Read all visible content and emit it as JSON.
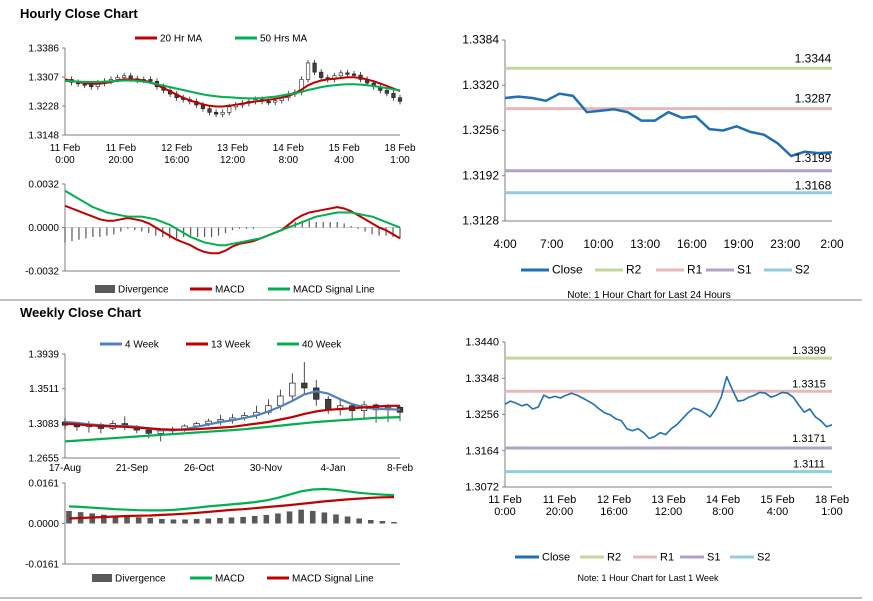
{
  "hourly_section": {
    "title": "Hourly Close Chart"
  },
  "weekly_section": {
    "title": "Weekly Close Chart"
  },
  "colors": {
    "close": "#1f6fb4",
    "r2": "#c3d69b",
    "r1": "#e6b9b8",
    "s1": "#b3a2c7",
    "s2": "#93cddd",
    "ma_red": "#c00000",
    "ma_green": "#00b050",
    "ma_blue": "#4f81bd",
    "divergence": "#595959",
    "up_candle": "#ffffff",
    "down_candle": "#404040",
    "axis": "#7f7f7f"
  },
  "chart_data": [
    {
      "id": "hourly_price",
      "type": "line",
      "title": "Hourly Close Chart",
      "ylim": [
        1.3148,
        1.3386
      ],
      "yticks": [
        "1.3386",
        "1.3307",
        "1.3228",
        "1.3148"
      ],
      "xticks": [
        "11 Feb\n0:00",
        "11 Feb\n20:00",
        "12 Feb\n16:00",
        "13 Feb\n12:00",
        "14 Feb\n8:00",
        "15 Feb\n4:00",
        "18 Feb\n1:00"
      ],
      "legend": [
        "20 Hr MA",
        "50 Hrs MA"
      ],
      "close": [
        1.33,
        1.3292,
        1.3288,
        1.3285,
        1.328,
        1.329,
        1.3295,
        1.33,
        1.3305,
        1.331,
        1.3302,
        1.3298,
        1.33,
        1.3295,
        1.328,
        1.327,
        1.326,
        1.325,
        1.3245,
        1.324,
        1.323,
        1.322,
        1.321,
        1.3205,
        1.321,
        1.3225,
        1.323,
        1.3235,
        1.324,
        1.3245,
        1.324,
        1.3238,
        1.3242,
        1.325,
        1.326,
        1.3265,
        1.33,
        1.3345,
        1.332,
        1.3305,
        1.33,
        1.331,
        1.3318,
        1.3315,
        1.3312,
        1.33,
        1.329,
        1.328,
        1.327,
        1.3262,
        1.325,
        1.324
      ],
      "series": [
        {
          "name": "20 Hr MA",
          "values": [
            1.33,
            1.3296,
            1.3293,
            1.329,
            1.3288,
            1.3288,
            1.329,
            1.3293,
            1.3297,
            1.33,
            1.33,
            1.3299,
            1.3297,
            1.3292,
            1.3285,
            1.3276,
            1.3268,
            1.3258,
            1.325,
            1.3243,
            1.3237,
            1.3232,
            1.3228,
            1.3226,
            1.3226,
            1.3228,
            1.3231,
            1.3234,
            1.3237,
            1.324,
            1.3242,
            1.3244,
            1.3247,
            1.325,
            1.3255,
            1.3262,
            1.3272,
            1.3284,
            1.3292,
            1.3297,
            1.33,
            1.3302,
            1.3304,
            1.3306,
            1.3306,
            1.3304,
            1.33,
            1.3295,
            1.3289,
            1.3282,
            1.3275,
            1.3268
          ]
        },
        {
          "name": "50 Hrs MA",
          "values": [
            1.3296,
            1.3295,
            1.3294,
            1.3293,
            1.3293,
            1.3293,
            1.3294,
            1.3295,
            1.3296,
            1.3297,
            1.3297,
            1.3296,
            1.3294,
            1.3291,
            1.3287,
            1.3283,
            1.3279,
            1.3275,
            1.3271,
            1.3267,
            1.3263,
            1.3259,
            1.3256,
            1.3254,
            1.3252,
            1.3251,
            1.325,
            1.3249,
            1.3248,
            1.3248,
            1.3249,
            1.3251,
            1.3253,
            1.3256,
            1.3259,
            1.3262,
            1.3266,
            1.3271,
            1.3275,
            1.3279,
            1.3282,
            1.3284,
            1.3286,
            1.3287,
            1.3287,
            1.3286,
            1.3284,
            1.3282,
            1.3279,
            1.3276,
            1.3273,
            1.327
          ]
        }
      ]
    },
    {
      "id": "hourly_macd",
      "type": "line",
      "ylim": [
        -0.0032,
        0.0032
      ],
      "yticks": [
        "0.0032",
        "0.0000",
        "-0.0032"
      ],
      "legend": [
        "Divergence",
        "MACD",
        "MACD Signal Line"
      ],
      "series": [
        {
          "name": "MACD",
          "values": [
            0.0016,
            0.0014,
            0.0012,
            0.001,
            0.0008,
            0.0006,
            0.0005,
            0.0005,
            0.0006,
            0.0007,
            0.0006,
            0.0005,
            0.0003,
            0.0,
            -0.0003,
            -0.0006,
            -0.0009,
            -0.0011,
            -0.0013,
            -0.0016,
            -0.0018,
            -0.0019,
            -0.0019,
            -0.0017,
            -0.0014,
            -0.0012,
            -0.0011,
            -0.001,
            -0.0008,
            -0.0006,
            -0.0004,
            -0.0002,
            0.0002,
            0.0006,
            0.0009,
            0.0011,
            0.0012,
            0.0013,
            0.0014,
            0.0015,
            0.0014,
            0.0012,
            0.0009,
            0.0006,
            0.0003,
            0.0,
            -0.0002,
            -0.0005,
            -0.0008
          ]
        },
        {
          "name": "MACD Signal Line",
          "values": [
            0.0027,
            0.0024,
            0.0021,
            0.0018,
            0.0015,
            0.0013,
            0.0011,
            0.001,
            0.0009,
            0.0008,
            0.0008,
            0.0008,
            0.0007,
            0.0006,
            0.0004,
            0.0002,
            -0.0001,
            -0.0004,
            -0.0007,
            -0.0009,
            -0.0011,
            -0.0012,
            -0.0013,
            -0.0013,
            -0.0012,
            -0.0011,
            -0.001,
            -0.0009,
            -0.0008,
            -0.0006,
            -0.0004,
            -0.0002,
            0.0,
            0.0002,
            0.0004,
            0.0006,
            0.0008,
            0.0009,
            0.001,
            0.0011,
            0.0011,
            0.0011,
            0.001,
            0.0009,
            0.0008,
            0.0006,
            0.0004,
            0.0002,
            0.0
          ]
        }
      ]
    },
    {
      "id": "hourly_levels",
      "type": "line",
      "ylim": [
        1.3128,
        1.3384
      ],
      "yticks": [
        "1.3384",
        "1.3320",
        "1.3256",
        "1.3192",
        "1.3128"
      ],
      "xticks": [
        "4:00",
        "7:00",
        "10:00",
        "13:00",
        "16:00",
        "19:00",
        "23:00",
        "2:00"
      ],
      "levels": {
        "R2": 1.3344,
        "R1": 1.3287,
        "S1": 1.3199,
        "S2": 1.3168
      },
      "level_labels": {
        "R2": "1.3344",
        "R1": "1.3287",
        "S1": "1.3199",
        "S2": "1.3168"
      },
      "close": [
        1.3302,
        1.3304,
        1.3302,
        1.3298,
        1.3308,
        1.3305,
        1.3282,
        1.3284,
        1.3286,
        1.3282,
        1.327,
        1.327,
        1.3282,
        1.3274,
        1.3276,
        1.3258,
        1.3256,
        1.3262,
        1.3254,
        1.325,
        1.3238,
        1.322,
        1.3226,
        1.3224,
        1.3225
      ],
      "legend": [
        "Close",
        "R2",
        "R1",
        "S1",
        "S2"
      ],
      "note": "Note: 1 Hour Chart for Last 24 Hours"
    },
    {
      "id": "weekly_price",
      "type": "line",
      "title": "Weekly Close Chart",
      "ylim": [
        1.2655,
        1.3939
      ],
      "yticks": [
        "1.3939",
        "1.3511",
        "1.3083",
        "1.2655"
      ],
      "xticks": [
        "17-Aug",
        "21-Sep",
        "26-Oct",
        "30-Nov",
        "4-Jan",
        "8-Feb"
      ],
      "legend": [
        "4 Week",
        "13 Week",
        "40 Week"
      ],
      "candles": [
        {
          "o": 1.31,
          "c": 1.306,
          "h": 1.315,
          "l": 1.301
        },
        {
          "o": 1.306,
          "c": 1.304,
          "h": 1.31,
          "l": 1.299
        },
        {
          "o": 1.304,
          "c": 1.307,
          "h": 1.311,
          "l": 1.297
        },
        {
          "o": 1.307,
          "c": 1.302,
          "h": 1.309,
          "l": 1.296
        },
        {
          "o": 1.302,
          "c": 1.308,
          "h": 1.312,
          "l": 1.3
        },
        {
          "o": 1.308,
          "c": 1.304,
          "h": 1.317,
          "l": 1.3
        },
        {
          "o": 1.304,
          "c": 1.3,
          "h": 1.306,
          "l": 1.296
        },
        {
          "o": 1.3,
          "c": 1.296,
          "h": 1.303,
          "l": 1.29
        },
        {
          "o": 1.296,
          "c": 1.299,
          "h": 1.301,
          "l": 1.286
        },
        {
          "o": 1.299,
          "c": 1.301,
          "h": 1.304,
          "l": 1.295
        },
        {
          "o": 1.301,
          "c": 1.305,
          "h": 1.307,
          "l": 1.298
        },
        {
          "o": 1.305,
          "c": 1.308,
          "h": 1.31,
          "l": 1.301
        },
        {
          "o": 1.308,
          "c": 1.311,
          "h": 1.314,
          "l": 1.305
        },
        {
          "o": 1.311,
          "c": 1.313,
          "h": 1.319,
          "l": 1.306
        },
        {
          "o": 1.313,
          "c": 1.315,
          "h": 1.32,
          "l": 1.308
        },
        {
          "o": 1.315,
          "c": 1.318,
          "h": 1.322,
          "l": 1.312
        },
        {
          "o": 1.318,
          "c": 1.322,
          "h": 1.33,
          "l": 1.314
        },
        {
          "o": 1.322,
          "c": 1.33,
          "h": 1.338,
          "l": 1.319
        },
        {
          "o": 1.33,
          "c": 1.342,
          "h": 1.35,
          "l": 1.325
        },
        {
          "o": 1.342,
          "c": 1.358,
          "h": 1.37,
          "l": 1.338
        },
        {
          "o": 1.358,
          "c": 1.352,
          "h": 1.384,
          "l": 1.344
        },
        {
          "o": 1.352,
          "c": 1.338,
          "h": 1.362,
          "l": 1.33
        },
        {
          "o": 1.338,
          "c": 1.325,
          "h": 1.342,
          "l": 1.32
        },
        {
          "o": 1.325,
          "c": 1.33,
          "h": 1.338,
          "l": 1.318
        },
        {
          "o": 1.33,
          "c": 1.324,
          "h": 1.333,
          "l": 1.314
        },
        {
          "o": 1.324,
          "c": 1.331,
          "h": 1.336,
          "l": 1.315
        },
        {
          "o": 1.331,
          "c": 1.325,
          "h": 1.333,
          "l": 1.309
        },
        {
          "o": 1.325,
          "c": 1.328,
          "h": 1.332,
          "l": 1.31
        },
        {
          "o": 1.328,
          "c": 1.322,
          "h": 1.33,
          "l": 1.311
        }
      ],
      "series": [
        {
          "name": "4 Week",
          "values": [
            1.31,
            1.309,
            1.307,
            1.306,
            1.305,
            1.305,
            1.304,
            1.302,
            1.3,
            1.3,
            1.301,
            1.304,
            1.307,
            1.31,
            1.312,
            1.315,
            1.318,
            1.323,
            1.329,
            1.336,
            1.344,
            1.348,
            1.345,
            1.338,
            1.332,
            1.328,
            1.326,
            1.326,
            1.325
          ]
        },
        {
          "name": "13 Week",
          "values": [
            1.308,
            1.307,
            1.306,
            1.305,
            1.3045,
            1.304,
            1.303,
            1.302,
            1.301,
            1.3005,
            1.3005,
            1.301,
            1.302,
            1.303,
            1.304,
            1.306,
            1.308,
            1.31,
            1.313,
            1.316,
            1.32,
            1.323,
            1.325,
            1.326,
            1.327,
            1.328,
            1.329,
            1.33,
            1.33
          ]
        },
        {
          "name": "40 Week",
          "values": [
            1.286,
            1.287,
            1.288,
            1.289,
            1.29,
            1.291,
            1.292,
            1.293,
            1.294,
            1.295,
            1.296,
            1.297,
            1.298,
            1.299,
            1.3,
            1.301,
            1.3025,
            1.304,
            1.3055,
            1.307,
            1.3085,
            1.31,
            1.311,
            1.312,
            1.313,
            1.314,
            1.315,
            1.3155,
            1.316
          ]
        }
      ]
    },
    {
      "id": "weekly_macd",
      "type": "bar",
      "ylim": [
        -0.0161,
        0.0161
      ],
      "yticks": [
        "0.0161",
        "0.0000",
        "-0.0161"
      ],
      "legend": [
        "Divergence",
        "MACD",
        "MACD Signal Line"
      ],
      "divergence": [
        0.005,
        0.0045,
        0.004,
        0.0035,
        0.003,
        0.0028,
        0.0025,
        0.0022,
        0.0018,
        0.0016,
        0.0016,
        0.0018,
        0.002,
        0.0022,
        0.0024,
        0.0026,
        0.003,
        0.0034,
        0.004,
        0.0048,
        0.0055,
        0.005,
        0.0044,
        0.0036,
        0.0028,
        0.002,
        0.0014,
        0.001,
        0.0006
      ],
      "series": [
        {
          "name": "MACD",
          "values": [
            0.0068,
            0.0066,
            0.0063,
            0.006,
            0.0057,
            0.0055,
            0.0053,
            0.0052,
            0.0052,
            0.0054,
            0.0058,
            0.0063,
            0.0068,
            0.0072,
            0.0076,
            0.008,
            0.0085,
            0.0092,
            0.0102,
            0.0115,
            0.0128,
            0.0135,
            0.0137,
            0.0134,
            0.0128,
            0.0122,
            0.0118,
            0.0115,
            0.0113
          ]
        },
        {
          "name": "MACD Signal Line",
          "values": [
            0.002,
            0.0022,
            0.0024,
            0.0026,
            0.0028,
            0.003,
            0.0031,
            0.0032,
            0.0034,
            0.0036,
            0.0039,
            0.0042,
            0.0046,
            0.005,
            0.0054,
            0.0057,
            0.0061,
            0.0065,
            0.0069,
            0.0073,
            0.0078,
            0.0083,
            0.0088,
            0.0092,
            0.0096,
            0.0099,
            0.0102,
            0.0104,
            0.0105
          ]
        }
      ]
    },
    {
      "id": "weekly_levels",
      "type": "line",
      "ylim": [
        1.3072,
        1.344
      ],
      "yticks": [
        "1.3440",
        "1.3348",
        "1.3256",
        "1.3164",
        "1.3072"
      ],
      "xticks": [
        "11 Feb\n0:00",
        "11 Feb\n20:00",
        "12 Feb\n16:00",
        "13 Feb\n12:00",
        "14 Feb\n8:00",
        "15 Feb\n4:00",
        "18 Feb\n1:00"
      ],
      "levels": {
        "R2": 1.3399,
        "R1": 1.3315,
        "S1": 1.3171,
        "S2": 1.3111
      },
      "level_labels": {
        "R2": "1.3399",
        "R1": "1.3315",
        "S1": "1.3171",
        "S2": "1.3111"
      },
      "close": [
        1.3282,
        1.329,
        1.3285,
        1.3278,
        1.3282,
        1.327,
        1.3275,
        1.3305,
        1.3298,
        1.3302,
        1.3298,
        1.3305,
        1.331,
        1.3305,
        1.3298,
        1.329,
        1.3282,
        1.327,
        1.326,
        1.3255,
        1.3245,
        1.324,
        1.322,
        1.3215,
        1.322,
        1.321,
        1.3195,
        1.32,
        1.321,
        1.3205,
        1.322,
        1.323,
        1.3245,
        1.326,
        1.3272,
        1.3268,
        1.326,
        1.325,
        1.327,
        1.33,
        1.3352,
        1.332,
        1.329,
        1.3292,
        1.33,
        1.3305,
        1.3312,
        1.331,
        1.33,
        1.3305,
        1.3312,
        1.331,
        1.33,
        1.328,
        1.3262,
        1.327,
        1.325,
        1.324,
        1.3225,
        1.323
      ],
      "legend": [
        "Close",
        "R2",
        "R1",
        "S1",
        "S2"
      ],
      "note": "Note: 1 Hour Chart for Last 1 Week"
    }
  ]
}
